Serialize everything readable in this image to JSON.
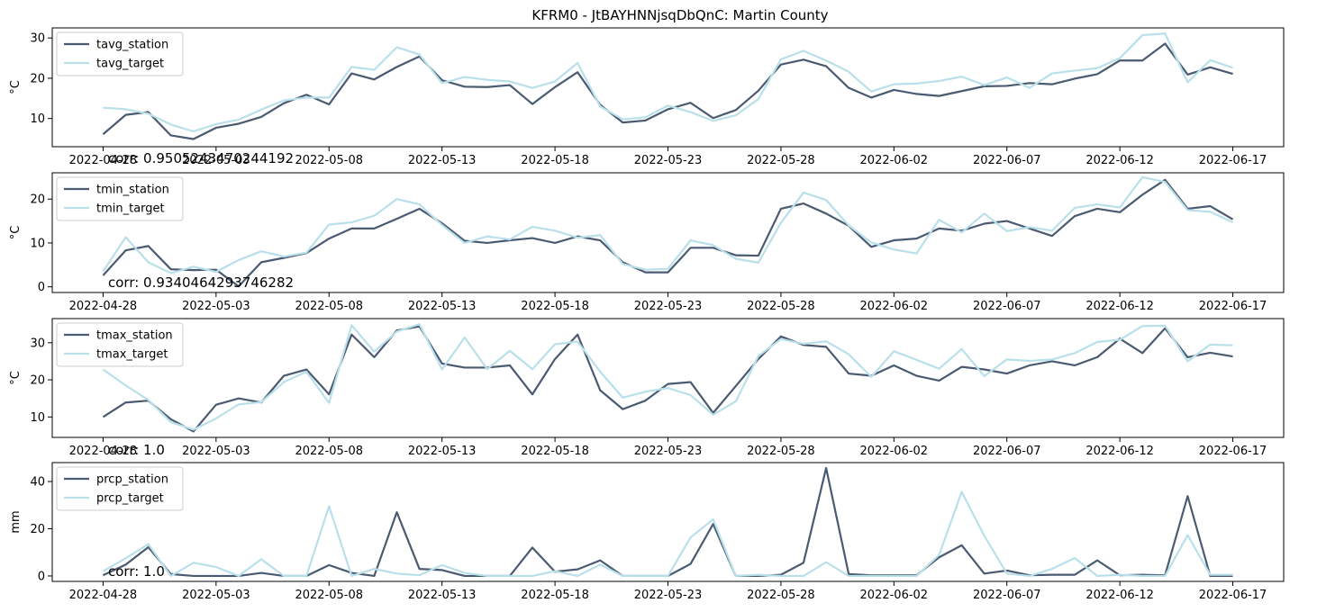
{
  "figure": {
    "title": "KFRM0 - JtBAYHNNjsqDbQnC: Martin County"
  },
  "colors": {
    "station": "#4a5a70",
    "target": "#b9e0ea",
    "axis": "#000000"
  },
  "chart_data": [
    {
      "type": "line",
      "title": "",
      "xlabel": "",
      "ylabel": "°C",
      "ylim": [
        3,
        32.5
      ],
      "yticks": [
        10,
        20,
        30
      ],
      "x_start": "2022-04-28",
      "x_end": "2022-06-17",
      "x_ticks": [
        "2022-04-28",
        "2022-05-03",
        "2022-05-08",
        "2022-05-13",
        "2022-05-18",
        "2022-05-23",
        "2022-05-28",
        "2022-06-02",
        "2022-06-07",
        "2022-06-12",
        "2022-06-17"
      ],
      "legend_position": "top-left",
      "annotation": "corr: 0.9505243470244192",
      "series": [
        {
          "name": "tavg_station",
          "values": [
            6.1,
            10.9,
            11.6,
            5.8,
            4.9,
            7.7,
            8.7,
            10.4,
            13.8,
            15.9,
            13.5,
            21.2,
            19.7,
            22.8,
            25.4,
            19.5,
            17.9,
            17.8,
            18.3,
            13.6,
            17.8,
            21.5,
            13.4,
            9.0,
            9.5,
            12.3,
            13.9,
            10.1,
            12.1,
            16.9,
            23.4,
            24.6,
            23.0,
            17.6,
            15.2,
            17.1,
            16.1,
            15.6,
            16.8,
            18.0,
            18.1,
            18.8,
            18.5,
            19.9,
            21.0,
            24.4,
            24.4,
            28.6,
            20.9,
            22.7,
            21.1
          ]
        },
        {
          "name": "tavg_target",
          "values": [
            12.7,
            12.3,
            11.2,
            8.5,
            6.8,
            8.6,
            9.7,
            12.2,
            14.5,
            15.2,
            15.2,
            22.8,
            22.1,
            27.7,
            25.9,
            18.8,
            20.3,
            19.6,
            19.2,
            17.6,
            19.2,
            23.8,
            13.0,
            9.8,
            10.3,
            13.2,
            11.6,
            9.4,
            10.8,
            14.8,
            24.7,
            26.8,
            24.4,
            21.6,
            16.7,
            18.5,
            18.7,
            19.3,
            20.4,
            18.3,
            20.2,
            17.6,
            21.2,
            21.9,
            22.5,
            25.0,
            30.7,
            31.1,
            19.0,
            24.5,
            22.6
          ]
        }
      ]
    },
    {
      "type": "line",
      "title": "",
      "xlabel": "",
      "ylabel": "°C",
      "ylim": [
        -1.3,
        26
      ],
      "yticks": [
        0,
        10,
        20
      ],
      "x_start": "2022-04-28",
      "x_end": "2022-06-17",
      "x_ticks": [
        "2022-04-28",
        "2022-05-03",
        "2022-05-08",
        "2022-05-13",
        "2022-05-18",
        "2022-05-23",
        "2022-05-28",
        "2022-06-02",
        "2022-06-07",
        "2022-06-12",
        "2022-06-17"
      ],
      "legend_position": "top-left",
      "annotation": "corr: 0.9340464293746282",
      "series": [
        {
          "name": "tmin_station",
          "values": [
            2.6,
            8.3,
            9.3,
            4.0,
            3.8,
            3.9,
            0.1,
            5.6,
            6.6,
            7.7,
            11.0,
            13.3,
            13.3,
            15.5,
            17.8,
            14.5,
            10.5,
            10.0,
            10.6,
            11.1,
            10.0,
            11.5,
            10.6,
            5.6,
            3.3,
            3.3,
            8.9,
            8.9,
            7.2,
            7.1,
            17.8,
            19.0,
            16.7,
            13.9,
            9.1,
            10.6,
            11.0,
            13.3,
            12.8,
            14.4,
            15.0,
            13.3,
            11.6,
            16.1,
            17.8,
            17.0,
            21.0,
            24.4,
            17.8,
            18.4,
            15.4
          ]
        },
        {
          "name": "tmin_target",
          "values": [
            3.5,
            11.3,
            5.6,
            3.1,
            4.6,
            3.4,
            6.1,
            8.1,
            6.9,
            7.8,
            14.2,
            14.7,
            16.2,
            20.0,
            18.8,
            14.1,
            10.0,
            11.5,
            10.8,
            13.7,
            12.8,
            11.2,
            11.8,
            5.2,
            3.9,
            4.1,
            10.6,
            9.5,
            6.4,
            5.5,
            14.6,
            21.5,
            19.8,
            14.0,
            10.1,
            8.5,
            7.6,
            15.3,
            12.4,
            16.7,
            12.7,
            13.6,
            12.8,
            18.0,
            18.8,
            18.1,
            25.0,
            23.9,
            17.5,
            17.1,
            14.7
          ]
        }
      ]
    },
    {
      "type": "line",
      "title": "",
      "xlabel": "",
      "ylabel": "°C",
      "ylim": [
        4.5,
        36.5
      ],
      "yticks": [
        10,
        20,
        30
      ],
      "x_start": "2022-04-28",
      "x_end": "2022-06-17",
      "x_ticks": [
        "2022-04-28",
        "2022-05-03",
        "2022-05-08",
        "2022-05-13",
        "2022-05-18",
        "2022-05-23",
        "2022-05-28",
        "2022-06-02",
        "2022-06-07",
        "2022-06-12",
        "2022-06-17"
      ],
      "legend_position": "top-left",
      "annotation": "corr: 1.0",
      "series": [
        {
          "name": "tmax_station",
          "values": [
            10.0,
            13.9,
            14.4,
            9.4,
            6.1,
            13.3,
            15.0,
            13.9,
            21.1,
            22.8,
            16.1,
            32.2,
            26.1,
            33.3,
            34.4,
            24.4,
            23.3,
            23.3,
            23.9,
            16.1,
            25.6,
            32.2,
            17.2,
            12.1,
            14.4,
            18.9,
            19.4,
            11.1,
            18.3,
            25.6,
            31.7,
            29.4,
            28.9,
            21.7,
            21.1,
            23.9,
            21.1,
            19.8,
            23.5,
            22.8,
            21.7,
            23.9,
            25.0,
            23.9,
            26.1,
            31.1,
            27.2,
            33.9,
            26.1,
            27.3,
            26.3
          ]
        },
        {
          "name": "tmax_target",
          "values": [
            22.8,
            18.5,
            14.6,
            8.6,
            6.6,
            9.6,
            13.4,
            14.0,
            19.4,
            22.2,
            13.8,
            34.7,
            27.6,
            33.0,
            35.0,
            22.8,
            31.4,
            22.9,
            27.8,
            22.9,
            29.6,
            30.3,
            22.2,
            15.2,
            16.8,
            17.8,
            15.9,
            10.6,
            14.2,
            26.4,
            31.0,
            29.7,
            30.4,
            26.9,
            20.8,
            27.7,
            25.4,
            23.0,
            28.3,
            21.0,
            25.5,
            25.1,
            25.5,
            27.2,
            30.2,
            30.8,
            34.5,
            34.6,
            25.0,
            29.5,
            29.3
          ]
        }
      ]
    },
    {
      "type": "line",
      "title": "",
      "xlabel": "",
      "ylabel": "mm",
      "ylim": [
        -2.3,
        48
      ],
      "yticks": [
        0,
        20,
        40
      ],
      "x_start": "2022-04-28",
      "x_end": "2022-06-17",
      "x_ticks": [
        "2022-04-28",
        "2022-05-03",
        "2022-05-08",
        "2022-05-13",
        "2022-05-18",
        "2022-05-23",
        "2022-05-28",
        "2022-06-02",
        "2022-06-07",
        "2022-06-12",
        "2022-06-17"
      ],
      "legend_position": "top-left",
      "annotation": "corr: 1.0",
      "series": [
        {
          "name": "prcp_station",
          "values": [
            0.3,
            4.8,
            12.2,
            0.8,
            0.0,
            0.0,
            0.0,
            1.3,
            0.0,
            0.0,
            4.6,
            1.3,
            0.0,
            27.0,
            3.0,
            2.5,
            0.0,
            0.0,
            0.0,
            12.0,
            1.8,
            2.8,
            6.6,
            0.0,
            0.0,
            0.0,
            5.1,
            22.0,
            0.0,
            0.0,
            0.5,
            5.6,
            45.7,
            0.8,
            0.3,
            0.3,
            0.3,
            7.9,
            13.0,
            1.0,
            2.3,
            0.3,
            0.5,
            0.5,
            6.6,
            0.3,
            0.5,
            0.3,
            33.8,
            0.0,
            0.0
          ]
        },
        {
          "name": "prcp_target",
          "values": [
            2.0,
            7.5,
            13.5,
            0.0,
            5.6,
            3.8,
            0.0,
            7.1,
            0.0,
            0.0,
            29.5,
            0.0,
            3.0,
            1.0,
            0.3,
            4.6,
            1.3,
            0.0,
            0.0,
            0.0,
            2.0,
            0.0,
            4.8,
            0.0,
            0.0,
            0.0,
            16.3,
            24.0,
            0.0,
            0.5,
            0.0,
            0.0,
            5.8,
            0.0,
            0.0,
            0.0,
            0.0,
            8.9,
            35.6,
            17.0,
            1.0,
            0.0,
            3.0,
            7.6,
            0.0,
            0.5,
            0.0,
            0.0,
            17.3,
            0.5,
            0.5
          ]
        }
      ]
    }
  ]
}
